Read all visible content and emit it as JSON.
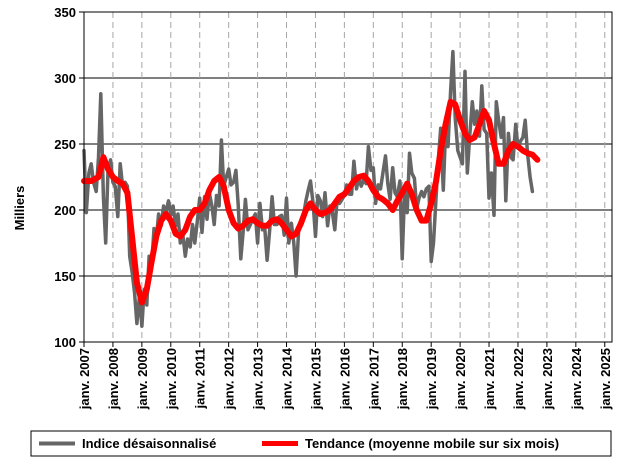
{
  "chart_data": {
    "type": "line",
    "ylabel": "Milliers",
    "ylim": [
      100,
      350
    ],
    "yticks": [
      100,
      150,
      200,
      250,
      300,
      350
    ],
    "xlim": [
      2007,
      2025.25
    ],
    "xticks": [
      {
        "x": 2007,
        "label": "janv. 2007"
      },
      {
        "x": 2008,
        "label": "janv. 2008"
      },
      {
        "x": 2009,
        "label": "janv. 2009"
      },
      {
        "x": 2010,
        "label": "janv. 2010"
      },
      {
        "x": 2011,
        "label": "janv. 2011"
      },
      {
        "x": 2012,
        "label": "janv. 2012"
      },
      {
        "x": 2013,
        "label": "janv. 2013"
      },
      {
        "x": 2014,
        "label": "janv. 2014"
      },
      {
        "x": 2015,
        "label": "janv. 2015"
      },
      {
        "x": 2016,
        "label": "janv. 2016"
      },
      {
        "x": 2017,
        "label": "janv. 2017"
      },
      {
        "x": 2018,
        "label": "janv. 2018"
      },
      {
        "x": 2019,
        "label": "janv. 2019"
      },
      {
        "x": 2020,
        "label": "janv. 2020"
      },
      {
        "x": 2021,
        "label": "janv. 2021"
      },
      {
        "x": 2022,
        "label": "janv. 2022"
      },
      {
        "x": 2023,
        "label": "janv. 2023"
      },
      {
        "x": 2024,
        "label": "janv. 2024"
      },
      {
        "x": 2025,
        "label": "janv. 2025"
      }
    ],
    "grid": {
      "horizontal": true,
      "vertical_dashed": true
    },
    "legend_position": "bottom",
    "series": [
      {
        "name": "Indice désaisonnalisé",
        "color": "#666666",
        "points": [
          [
            2007.0,
            245
          ],
          [
            2007.08,
            198
          ],
          [
            2007.17,
            228
          ],
          [
            2007.25,
            235
          ],
          [
            2007.33,
            221
          ],
          [
            2007.42,
            214
          ],
          [
            2007.5,
            240
          ],
          [
            2007.58,
            288
          ],
          [
            2007.67,
            210
          ],
          [
            2007.75,
            175
          ],
          [
            2007.83,
            230
          ],
          [
            2007.92,
            238
          ],
          [
            2008.0,
            221
          ],
          [
            2008.08,
            218
          ],
          [
            2008.17,
            195
          ],
          [
            2008.25,
            235
          ],
          [
            2008.33,
            219
          ],
          [
            2008.42,
            221
          ],
          [
            2008.5,
            218
          ],
          [
            2008.58,
            165
          ],
          [
            2008.67,
            152
          ],
          [
            2008.75,
            137
          ],
          [
            2008.83,
            114
          ],
          [
            2008.92,
            135
          ],
          [
            2009.0,
            112
          ],
          [
            2009.08,
            140
          ],
          [
            2009.17,
            128
          ],
          [
            2009.25,
            165
          ],
          [
            2009.33,
            155
          ],
          [
            2009.42,
            186
          ],
          [
            2009.5,
            178
          ],
          [
            2009.58,
            197
          ],
          [
            2009.67,
            188
          ],
          [
            2009.75,
            203
          ],
          [
            2009.83,
            198
          ],
          [
            2009.92,
            207
          ],
          [
            2010.0,
            196
          ],
          [
            2010.08,
            203
          ],
          [
            2010.17,
            188
          ],
          [
            2010.25,
            197
          ],
          [
            2010.33,
            175
          ],
          [
            2010.42,
            181
          ],
          [
            2010.5,
            165
          ],
          [
            2010.58,
            178
          ],
          [
            2010.67,
            172
          ],
          [
            2010.75,
            189
          ],
          [
            2010.83,
            175
          ],
          [
            2010.92,
            192
          ],
          [
            2011.0,
            209
          ],
          [
            2011.08,
            183
          ],
          [
            2011.17,
            210
          ],
          [
            2011.25,
            193
          ],
          [
            2011.33,
            213
          ],
          [
            2011.42,
            203
          ],
          [
            2011.5,
            189
          ],
          [
            2011.58,
            211
          ],
          [
            2011.67,
            203
          ],
          [
            2011.75,
            253
          ],
          [
            2011.83,
            218
          ],
          [
            2011.92,
            225
          ],
          [
            2012.0,
            231
          ],
          [
            2012.08,
            219
          ],
          [
            2012.17,
            221
          ],
          [
            2012.25,
            230
          ],
          [
            2012.33,
            204
          ],
          [
            2012.42,
            163
          ],
          [
            2012.5,
            183
          ],
          [
            2012.58,
            208
          ],
          [
            2012.67,
            185
          ],
          [
            2012.75,
            189
          ],
          [
            2012.83,
            193
          ],
          [
            2012.92,
            197
          ],
          [
            2013.0,
            175
          ],
          [
            2013.08,
            205
          ],
          [
            2013.17,
            185
          ],
          [
            2013.25,
            186
          ],
          [
            2013.33,
            162
          ],
          [
            2013.42,
            185
          ],
          [
            2013.5,
            210
          ],
          [
            2013.58,
            189
          ],
          [
            2013.67,
            189
          ],
          [
            2013.75,
            195
          ],
          [
            2013.83,
            196
          ],
          [
            2013.92,
            181
          ],
          [
            2014.0,
            209
          ],
          [
            2014.08,
            175
          ],
          [
            2014.17,
            190
          ],
          [
            2014.25,
            175
          ],
          [
            2014.33,
            150
          ],
          [
            2014.42,
            185
          ],
          [
            2014.5,
            190
          ],
          [
            2014.58,
            195
          ],
          [
            2014.67,
            207
          ],
          [
            2014.75,
            215
          ],
          [
            2014.83,
            222
          ],
          [
            2014.92,
            205
          ],
          [
            2015.0,
            180
          ],
          [
            2015.08,
            211
          ],
          [
            2015.17,
            207
          ],
          [
            2015.25,
            195
          ],
          [
            2015.33,
            213
          ],
          [
            2015.42,
            188
          ],
          [
            2015.5,
            203
          ],
          [
            2015.58,
            199
          ],
          [
            2015.67,
            185
          ],
          [
            2015.75,
            209
          ],
          [
            2015.83,
            205
          ],
          [
            2015.92,
            208
          ],
          [
            2016.0,
            211
          ],
          [
            2016.08,
            219
          ],
          [
            2016.17,
            212
          ],
          [
            2016.25,
            212
          ],
          [
            2016.33,
            237
          ],
          [
            2016.42,
            216
          ],
          [
            2016.5,
            225
          ],
          [
            2016.58,
            218
          ],
          [
            2016.67,
            223
          ],
          [
            2016.75,
            220
          ],
          [
            2016.83,
            248
          ],
          [
            2016.92,
            230
          ],
          [
            2017.0,
            232
          ],
          [
            2017.08,
            205
          ],
          [
            2017.17,
            219
          ],
          [
            2017.25,
            216
          ],
          [
            2017.33,
            228
          ],
          [
            2017.42,
            241
          ],
          [
            2017.5,
            220
          ],
          [
            2017.58,
            208
          ],
          [
            2017.67,
            232
          ],
          [
            2017.75,
            213
          ],
          [
            2017.83,
            210
          ],
          [
            2017.92,
            222
          ],
          [
            2018.0,
            163
          ],
          [
            2018.08,
            214
          ],
          [
            2018.17,
            198
          ],
          [
            2018.25,
            243
          ],
          [
            2018.33,
            228
          ],
          [
            2018.42,
            224
          ],
          [
            2018.5,
            201
          ],
          [
            2018.58,
            209
          ],
          [
            2018.67,
            214
          ],
          [
            2018.75,
            210
          ],
          [
            2018.83,
            216
          ],
          [
            2018.92,
            218
          ],
          [
            2019.0,
            161
          ],
          [
            2019.08,
            175
          ],
          [
            2019.17,
            210
          ],
          [
            2019.25,
            239
          ],
          [
            2019.33,
            262
          ],
          [
            2019.42,
            215
          ],
          [
            2019.5,
            261
          ],
          [
            2019.58,
            248
          ],
          [
            2019.67,
            290
          ],
          [
            2019.75,
            320
          ],
          [
            2019.83,
            270
          ],
          [
            2019.92,
            245
          ],
          [
            2020.0,
            240
          ],
          [
            2020.08,
            235
          ],
          [
            2020.17,
            305
          ],
          [
            2020.25,
            228
          ],
          [
            2020.33,
            256
          ],
          [
            2020.42,
            282
          ],
          [
            2020.5,
            265
          ],
          [
            2020.58,
            275
          ],
          [
            2020.67,
            256
          ],
          [
            2020.75,
            294
          ],
          [
            2020.83,
            261
          ],
          [
            2020.92,
            258
          ],
          [
            2021.0,
            209
          ],
          [
            2021.08,
            228
          ],
          [
            2021.17,
            196
          ],
          [
            2021.25,
            282
          ],
          [
            2021.33,
            268
          ],
          [
            2021.42,
            255
          ],
          [
            2021.5,
            270
          ],
          [
            2021.58,
            207
          ],
          [
            2021.67,
            258
          ],
          [
            2021.75,
            240
          ],
          [
            2021.83,
            238
          ],
          [
            2021.92,
            265
          ],
          [
            2022.0,
            247
          ],
          [
            2022.08,
            252
          ],
          [
            2022.17,
            255
          ],
          [
            2022.25,
            268
          ],
          [
            2022.33,
            243
          ],
          [
            2022.42,
            225
          ],
          [
            2022.5,
            214
          ]
        ]
      },
      {
        "name": "Tendance (moyenne mobile sur six mois)",
        "color": "#ff0000",
        "points": [
          [
            2007.0,
            222
          ],
          [
            2007.25,
            222
          ],
          [
            2007.5,
            225
          ],
          [
            2007.67,
            240
          ],
          [
            2007.83,
            231
          ],
          [
            2008.0,
            225
          ],
          [
            2008.17,
            222
          ],
          [
            2008.33,
            220
          ],
          [
            2008.5,
            213
          ],
          [
            2008.67,
            178
          ],
          [
            2008.83,
            145
          ],
          [
            2009.0,
            130
          ],
          [
            2009.17,
            140
          ],
          [
            2009.33,
            160
          ],
          [
            2009.5,
            180
          ],
          [
            2009.67,
            192
          ],
          [
            2009.83,
            197
          ],
          [
            2010.0,
            192
          ],
          [
            2010.17,
            182
          ],
          [
            2010.33,
            180
          ],
          [
            2010.5,
            185
          ],
          [
            2010.67,
            195
          ],
          [
            2010.83,
            200
          ],
          [
            2011.0,
            200
          ],
          [
            2011.17,
            205
          ],
          [
            2011.33,
            215
          ],
          [
            2011.5,
            222
          ],
          [
            2011.67,
            225
          ],
          [
            2011.83,
            218
          ],
          [
            2012.0,
            200
          ],
          [
            2012.17,
            190
          ],
          [
            2012.33,
            186
          ],
          [
            2012.5,
            188
          ],
          [
            2012.67,
            192
          ],
          [
            2012.83,
            193
          ],
          [
            2013.0,
            190
          ],
          [
            2013.17,
            188
          ],
          [
            2013.33,
            188
          ],
          [
            2013.5,
            192
          ],
          [
            2013.67,
            193
          ],
          [
            2013.83,
            190
          ],
          [
            2014.0,
            185
          ],
          [
            2014.17,
            180
          ],
          [
            2014.33,
            182
          ],
          [
            2014.5,
            190
          ],
          [
            2014.67,
            200
          ],
          [
            2014.83,
            205
          ],
          [
            2015.0,
            200
          ],
          [
            2015.17,
            197
          ],
          [
            2015.33,
            198
          ],
          [
            2015.5,
            200
          ],
          [
            2015.67,
            205
          ],
          [
            2015.83,
            210
          ],
          [
            2016.0,
            212
          ],
          [
            2016.17,
            217
          ],
          [
            2016.33,
            222
          ],
          [
            2016.5,
            225
          ],
          [
            2016.67,
            226
          ],
          [
            2016.83,
            222
          ],
          [
            2017.0,
            215
          ],
          [
            2017.17,
            210
          ],
          [
            2017.33,
            208
          ],
          [
            2017.5,
            205
          ],
          [
            2017.67,
            200
          ],
          [
            2017.83,
            207
          ],
          [
            2018.0,
            213
          ],
          [
            2018.17,
            220
          ],
          [
            2018.33,
            212
          ],
          [
            2018.5,
            200
          ],
          [
            2018.67,
            192
          ],
          [
            2018.83,
            192
          ],
          [
            2019.0,
            205
          ],
          [
            2019.17,
            222
          ],
          [
            2019.33,
            245
          ],
          [
            2019.5,
            265
          ],
          [
            2019.67,
            282
          ],
          [
            2019.83,
            280
          ],
          [
            2020.0,
            268
          ],
          [
            2020.17,
            258
          ],
          [
            2020.33,
            253
          ],
          [
            2020.5,
            255
          ],
          [
            2020.67,
            265
          ],
          [
            2020.83,
            275
          ],
          [
            2021.0,
            268
          ],
          [
            2021.17,
            250
          ],
          [
            2021.33,
            235
          ],
          [
            2021.5,
            235
          ],
          [
            2021.67,
            245
          ],
          [
            2021.83,
            250
          ],
          [
            2022.0,
            248
          ],
          [
            2022.17,
            245
          ],
          [
            2022.33,
            243
          ],
          [
            2022.5,
            242
          ],
          [
            2022.67,
            238
          ]
        ]
      }
    ]
  }
}
